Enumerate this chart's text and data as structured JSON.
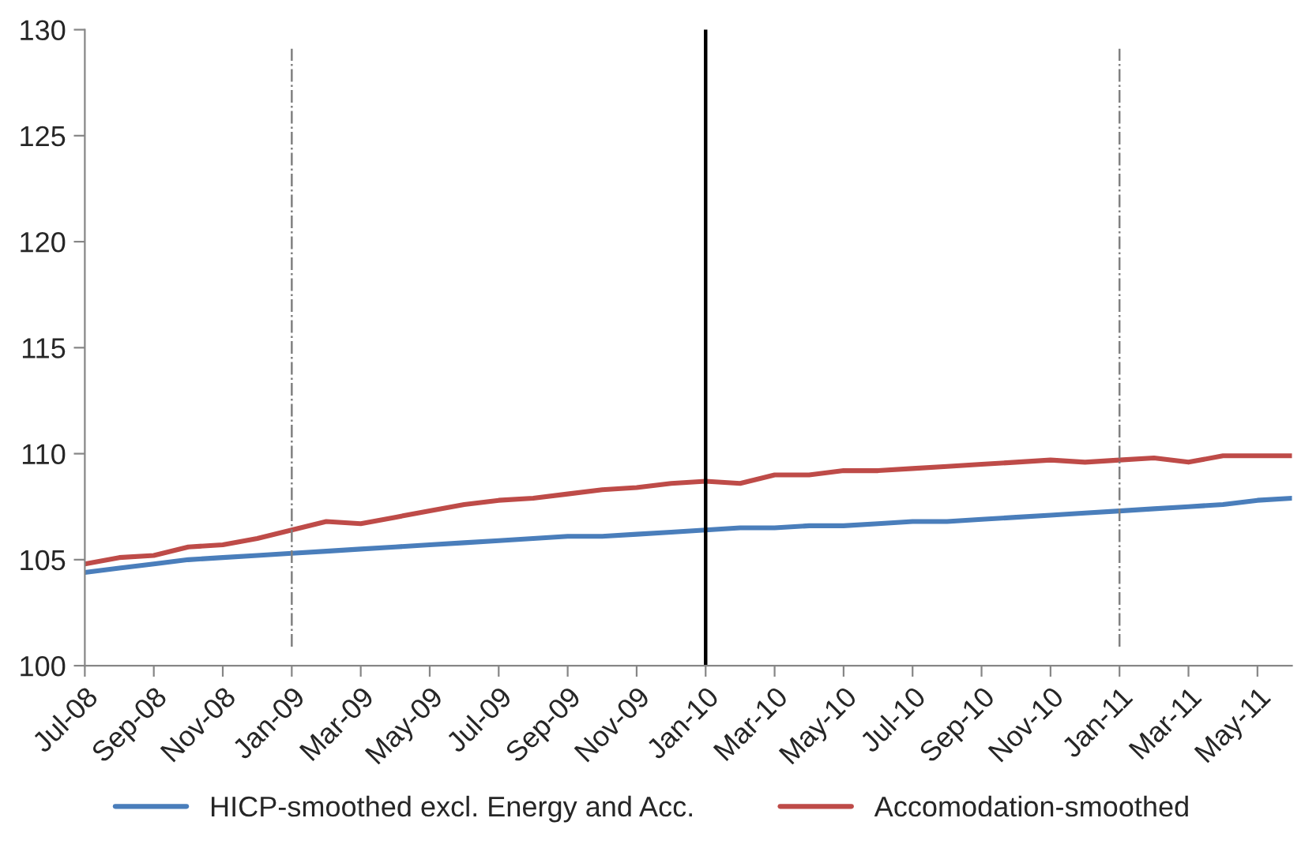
{
  "chart_data": {
    "type": "line",
    "categories": [
      "Jul-08",
      null,
      "Sep-08",
      null,
      "Nov-08",
      null,
      "Jan-09",
      null,
      "Mar-09",
      null,
      "May-09",
      null,
      "Jul-09",
      null,
      "Sep-09",
      null,
      "Nov-09",
      null,
      "Jan-10",
      null,
      "Mar-10",
      null,
      "May-10",
      null,
      "Jul-10",
      null,
      "Sep-10",
      null,
      "Nov-10",
      null,
      "Jan-11",
      null,
      "Mar-11",
      null,
      "May-11",
      null
    ],
    "series": [
      {
        "name": "HICP-smoothed excl. Energy and Acc.",
        "color": "#4a7ebb",
        "values": [
          104.4,
          104.6,
          104.8,
          105.0,
          105.1,
          105.2,
          105.3,
          105.4,
          105.5,
          105.6,
          105.7,
          105.8,
          105.9,
          106.0,
          106.1,
          106.1,
          106.2,
          106.3,
          106.4,
          106.5,
          106.5,
          106.6,
          106.6,
          106.7,
          106.8,
          106.8,
          106.9,
          107.0,
          107.1,
          107.2,
          107.3,
          107.4,
          107.5,
          107.6,
          107.8,
          107.9
        ]
      },
      {
        "name": "Accomodation-smoothed",
        "color": "#be4b48",
        "values": [
          104.8,
          105.1,
          105.2,
          105.6,
          105.7,
          106.0,
          106.4,
          106.8,
          106.7,
          107.0,
          107.3,
          107.6,
          107.8,
          107.9,
          108.1,
          108.3,
          108.4,
          108.6,
          108.7,
          108.6,
          109.0,
          109.0,
          109.2,
          109.2,
          109.3,
          109.4,
          109.5,
          109.6,
          109.7,
          109.6,
          109.7,
          109.8,
          109.6,
          109.9,
          109.9,
          109.9
        ]
      }
    ],
    "ylim": [
      100,
      130
    ],
    "yticks": [
      100,
      105,
      110,
      115,
      120,
      125,
      130
    ],
    "ref_lines": [
      {
        "axis": "x",
        "value": "Jan-09",
        "color": "#808080",
        "line_style": "dashdot"
      },
      {
        "axis": "x",
        "value": "Jan-10",
        "color": "#000000",
        "line_style": "solid"
      },
      {
        "axis": "x",
        "value": "Jan-11",
        "color": "#808080",
        "line_style": "dashdot"
      }
    ],
    "grid": false,
    "legend": "bottom",
    "marker": "none",
    "line_style": "solid"
  }
}
